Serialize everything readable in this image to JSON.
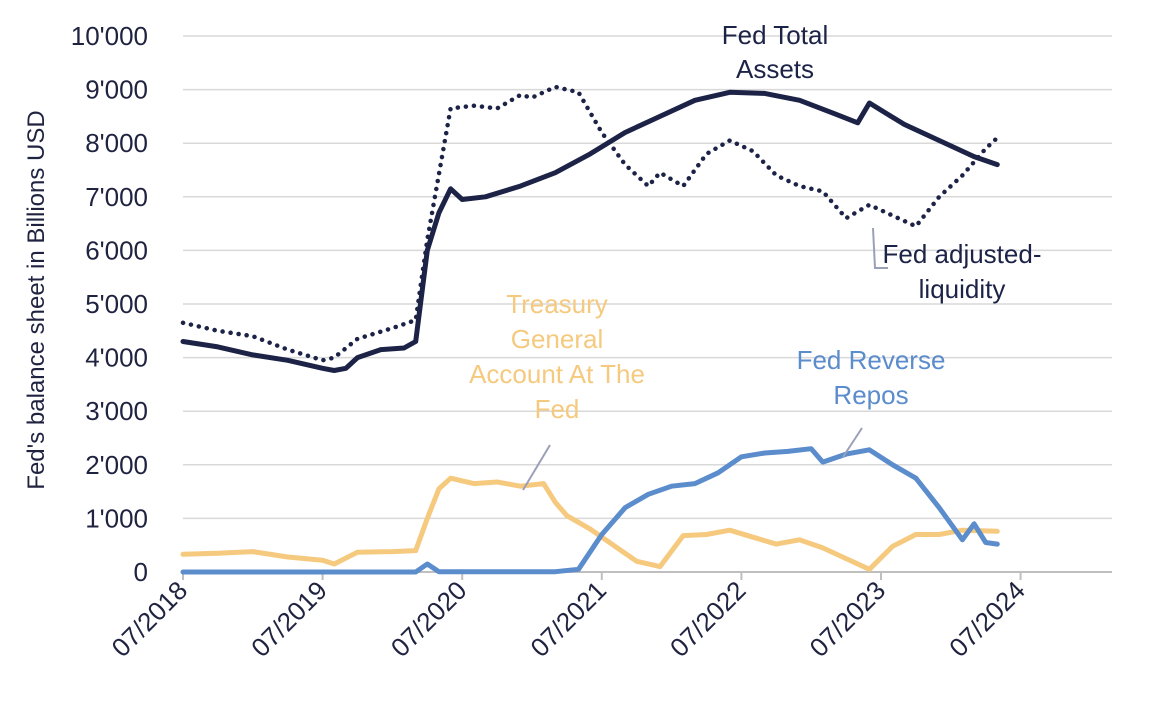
{
  "colors": {
    "fed_assets": "#1c2347",
    "adjusted": "#1c2347",
    "tga": "#f5c97e",
    "rrp": "#5b8ccc",
    "grid": "#d9d9d9",
    "text": "#1f2340"
  },
  "chart_data": {
    "type": "line",
    "ylabel": "Fed's balance sheet in Billions USD",
    "ylim": [
      0,
      10000
    ],
    "yticks": [
      0,
      1000,
      2000,
      3000,
      4000,
      5000,
      6000,
      7000,
      8000,
      9000,
      10000
    ],
    "ytick_labels": [
      "0",
      "1'000",
      "2'000",
      "3'000",
      "4'000",
      "5'000",
      "6'000",
      "7'000",
      "8'000",
      "9'000",
      "10'000"
    ],
    "xlim": [
      "2018-07",
      "2025-02"
    ],
    "xticks": [
      "2018-07",
      "2019-07",
      "2020-07",
      "2021-07",
      "2022-07",
      "2023-07",
      "2024-07"
    ],
    "xtick_labels": [
      "07/2018",
      "07/2019",
      "07/2020",
      "07/2021",
      "07/2022",
      "07/2023",
      "07/2024"
    ],
    "grid": true,
    "series": [
      {
        "name": "Fed Total Assets",
        "style": "solid",
        "color": "#1c2347",
        "points": [
          [
            "2018-07",
            4300
          ],
          [
            "2018-10",
            4200
          ],
          [
            "2019-01",
            4050
          ],
          [
            "2019-04",
            3950
          ],
          [
            "2019-07",
            3800
          ],
          [
            "2019-08",
            3760
          ],
          [
            "2019-09",
            3800
          ],
          [
            "2019-10",
            4000
          ],
          [
            "2019-12",
            4150
          ],
          [
            "2020-02",
            4180
          ],
          [
            "2020-03",
            4300
          ],
          [
            "2020-04",
            6000
          ],
          [
            "2020-05",
            6700
          ],
          [
            "2020-06",
            7150
          ],
          [
            "2020-07",
            6950
          ],
          [
            "2020-09",
            7000
          ],
          [
            "2020-12",
            7200
          ],
          [
            "2021-03",
            7450
          ],
          [
            "2021-06",
            7800
          ],
          [
            "2021-09",
            8200
          ],
          [
            "2021-12",
            8500
          ],
          [
            "2022-03",
            8800
          ],
          [
            "2022-06",
            8950
          ],
          [
            "2022-09",
            8930
          ],
          [
            "2022-12",
            8800
          ],
          [
            "2023-03",
            8550
          ],
          [
            "2023-05",
            8380
          ],
          [
            "2023-06",
            8750
          ],
          [
            "2023-09",
            8350
          ],
          [
            "2023-12",
            8050
          ],
          [
            "2024-03",
            7750
          ],
          [
            "2024-05",
            7600
          ]
        ]
      },
      {
        "name": "Fed adjusted-liquidity",
        "style": "dotted",
        "color": "#1c2347",
        "points": [
          [
            "2018-07",
            4650
          ],
          [
            "2018-10",
            4500
          ],
          [
            "2019-01",
            4400
          ],
          [
            "2019-04",
            4150
          ],
          [
            "2019-07",
            3950
          ],
          [
            "2019-08",
            4000
          ],
          [
            "2019-10",
            4350
          ],
          [
            "2020-01",
            4550
          ],
          [
            "2020-03",
            4700
          ],
          [
            "2020-04",
            6200
          ],
          [
            "2020-06",
            8650
          ],
          [
            "2020-08",
            8700
          ],
          [
            "2020-10",
            8650
          ],
          [
            "2020-12",
            8900
          ],
          [
            "2021-01",
            8850
          ],
          [
            "2021-03",
            9050
          ],
          [
            "2021-05",
            8950
          ],
          [
            "2021-07",
            8200
          ],
          [
            "2021-09",
            7600
          ],
          [
            "2021-11",
            7200
          ],
          [
            "2021-12",
            7450
          ],
          [
            "2022-02",
            7200
          ],
          [
            "2022-04",
            7800
          ],
          [
            "2022-06",
            8050
          ],
          [
            "2022-08",
            7850
          ],
          [
            "2022-10",
            7400
          ],
          [
            "2022-12",
            7200
          ],
          [
            "2023-02",
            7100
          ],
          [
            "2023-04",
            6600
          ],
          [
            "2023-06",
            6850
          ],
          [
            "2023-08",
            6650
          ],
          [
            "2023-10",
            6450
          ],
          [
            "2023-12",
            7000
          ],
          [
            "2024-02",
            7400
          ],
          [
            "2024-04",
            7900
          ],
          [
            "2024-05",
            8100
          ]
        ]
      },
      {
        "name": "Treasury General Account At The Fed",
        "style": "solid",
        "color": "#f5c97e",
        "points": [
          [
            "2018-07",
            330
          ],
          [
            "2018-10",
            350
          ],
          [
            "2019-01",
            380
          ],
          [
            "2019-04",
            280
          ],
          [
            "2019-07",
            220
          ],
          [
            "2019-08",
            150
          ],
          [
            "2019-10",
            370
          ],
          [
            "2020-01",
            380
          ],
          [
            "2020-03",
            400
          ],
          [
            "2020-04",
            1000
          ],
          [
            "2020-05",
            1550
          ],
          [
            "2020-06",
            1750
          ],
          [
            "2020-08",
            1650
          ],
          [
            "2020-10",
            1680
          ],
          [
            "2020-12",
            1600
          ],
          [
            "2021-02",
            1650
          ],
          [
            "2021-03",
            1300
          ],
          [
            "2021-04",
            1050
          ],
          [
            "2021-06",
            800
          ],
          [
            "2021-08",
            500
          ],
          [
            "2021-10",
            200
          ],
          [
            "2021-12",
            100
          ],
          [
            "2022-02",
            680
          ],
          [
            "2022-04",
            700
          ],
          [
            "2022-06",
            780
          ],
          [
            "2022-08",
            650
          ],
          [
            "2022-10",
            520
          ],
          [
            "2022-12",
            600
          ],
          [
            "2023-02",
            450
          ],
          [
            "2023-04",
            250
          ],
          [
            "2023-06",
            50
          ],
          [
            "2023-08",
            480
          ],
          [
            "2023-10",
            700
          ],
          [
            "2023-12",
            700
          ],
          [
            "2024-02",
            780
          ],
          [
            "2024-05",
            760
          ]
        ]
      },
      {
        "name": "Fed Reverse Repos",
        "style": "solid",
        "color": "#5b8ccc",
        "points": [
          [
            "2018-07",
            0
          ],
          [
            "2019-10",
            0
          ],
          [
            "2020-03",
            0
          ],
          [
            "2020-04",
            150
          ],
          [
            "2020-05",
            5
          ],
          [
            "2021-03",
            5
          ],
          [
            "2021-05",
            50
          ],
          [
            "2021-07",
            700
          ],
          [
            "2021-09",
            1200
          ],
          [
            "2021-11",
            1450
          ],
          [
            "2022-01",
            1600
          ],
          [
            "2022-03",
            1650
          ],
          [
            "2022-05",
            1850
          ],
          [
            "2022-07",
            2150
          ],
          [
            "2022-09",
            2220
          ],
          [
            "2022-11",
            2250
          ],
          [
            "2023-01",
            2300
          ],
          [
            "2023-02",
            2050
          ],
          [
            "2023-04",
            2200
          ],
          [
            "2023-06",
            2280
          ],
          [
            "2023-08",
            2000
          ],
          [
            "2023-10",
            1750
          ],
          [
            "2023-12",
            1200
          ],
          [
            "2024-02",
            600
          ],
          [
            "2024-03",
            900
          ],
          [
            "2024-04",
            550
          ],
          [
            "2024-05",
            520
          ]
        ]
      }
    ],
    "annotations": [
      {
        "text_lines": [
          "Fed Total",
          "Assets"
        ],
        "color": "#1c2347"
      },
      {
        "text_lines": [
          "Fed adjusted-",
          "liquidity"
        ],
        "color": "#1c2347"
      },
      {
        "text_lines": [
          "Treasury",
          "General",
          "Account At The",
          "Fed"
        ],
        "color": "#f5c97e"
      },
      {
        "text_lines": [
          "Fed Reverse",
          "Repos"
        ],
        "color": "#5b8ccc"
      }
    ]
  }
}
